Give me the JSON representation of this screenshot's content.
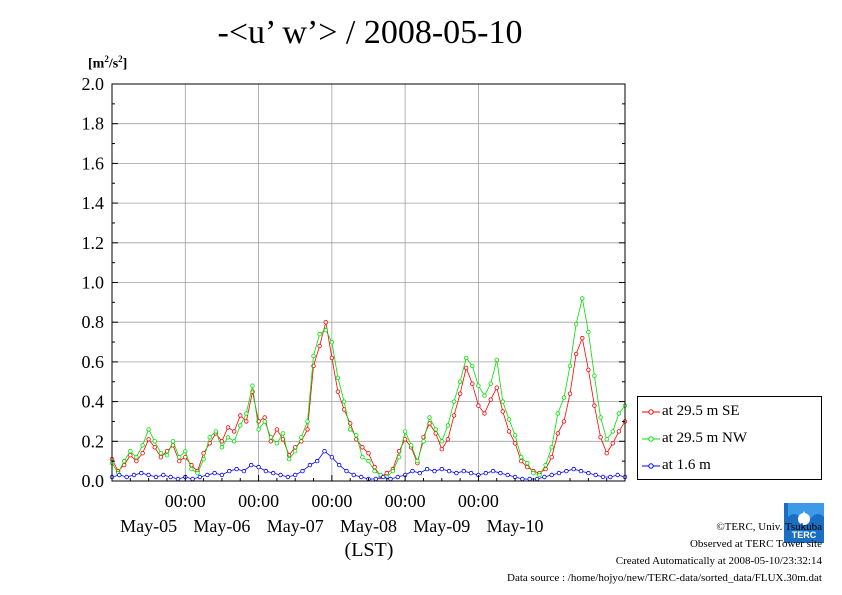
{
  "title": "-<u’ w’> / 2008-05-10",
  "unit_label": {
    "base": "[m",
    "sup": "2",
    "mid": "/s",
    "sup2": "2",
    "end": "]"
  },
  "legend": [
    {
      "label": "at 29.5 m SE",
      "color": "#ff0000"
    },
    {
      "label": "at 29.5 m NW",
      "color": "#00e000"
    },
    {
      "label": "at 1.6 m",
      "color": "#0000ff"
    }
  ],
  "footer": {
    "copyright": "©TERC, Univ. Tsukuba",
    "observed": "Observed at TERC Tower site",
    "created": "Created Automatically at 2008-05-10/23:32:14",
    "source": "Data source : /home/hojyo/new/TERC-data/sorted_data/FLUX.30m.dat"
  },
  "logo_text": "TERC",
  "chart_data": {
    "type": "line",
    "title": "-<u’ w’> / 2008-05-10",
    "xlabel": "(LST)",
    "ylabel": "[m2/s2]",
    "ylim": [
      0,
      2.0
    ],
    "yticks": [
      "0.0",
      "0.2",
      "0.4",
      "0.6",
      "0.8",
      "1.0",
      "1.2",
      "1.4",
      "1.6",
      "1.8",
      "2.0"
    ],
    "xlim": [
      -1,
      6
    ],
    "xticks_time": [
      "00:00",
      "00:00",
      "00:00",
      "00:00",
      "00:00"
    ],
    "xticks_date": [
      "May-05",
      "May-06",
      "May-07",
      "May-08",
      "May-09",
      "May-10"
    ],
    "grid": true,
    "legend_position": "right",
    "series": [
      {
        "name": "at 29.5 m SE",
        "color": "#ff0000",
        "points": [
          [
            -1.0,
            0.11
          ],
          [
            -0.917,
            0.05
          ],
          [
            -0.833,
            0.08
          ],
          [
            -0.75,
            0.13
          ],
          [
            -0.667,
            0.1
          ],
          [
            -0.583,
            0.14
          ],
          [
            -0.5,
            0.21
          ],
          [
            -0.417,
            0.17
          ],
          [
            -0.333,
            0.12
          ],
          [
            -0.25,
            0.15
          ],
          [
            -0.167,
            0.18
          ],
          [
            -0.083,
            0.1
          ],
          [
            0.0,
            0.12
          ],
          [
            0.083,
            0.08
          ],
          [
            0.167,
            0.05
          ],
          [
            0.25,
            0.14
          ],
          [
            0.333,
            0.19
          ],
          [
            0.417,
            0.24
          ],
          [
            0.5,
            0.2
          ],
          [
            0.583,
            0.27
          ],
          [
            0.667,
            0.25
          ],
          [
            0.75,
            0.33
          ],
          [
            0.833,
            0.3
          ],
          [
            0.917,
            0.45
          ],
          [
            1.0,
            0.3
          ],
          [
            1.083,
            0.32
          ],
          [
            1.167,
            0.2
          ],
          [
            1.25,
            0.26
          ],
          [
            1.333,
            0.21
          ],
          [
            1.417,
            0.13
          ],
          [
            1.5,
            0.17
          ],
          [
            1.583,
            0.2
          ],
          [
            1.667,
            0.26
          ],
          [
            1.75,
            0.58
          ],
          [
            1.833,
            0.68
          ],
          [
            1.917,
            0.8
          ],
          [
            2.0,
            0.62
          ],
          [
            2.083,
            0.45
          ],
          [
            2.167,
            0.36
          ],
          [
            2.25,
            0.29
          ],
          [
            2.333,
            0.21
          ],
          [
            2.417,
            0.17
          ],
          [
            2.5,
            0.14
          ],
          [
            2.583,
            0.07
          ],
          [
            2.667,
            0.02
          ],
          [
            2.75,
            0.04
          ],
          [
            2.833,
            0.06
          ],
          [
            2.917,
            0.15
          ],
          [
            3.0,
            0.21
          ],
          [
            3.083,
            0.17
          ],
          [
            3.167,
            0.09
          ],
          [
            3.25,
            0.22
          ],
          [
            3.333,
            0.29
          ],
          [
            3.417,
            0.24
          ],
          [
            3.5,
            0.16
          ],
          [
            3.583,
            0.21
          ],
          [
            3.667,
            0.33
          ],
          [
            3.75,
            0.44
          ],
          [
            3.833,
            0.57
          ],
          [
            3.917,
            0.49
          ],
          [
            4.0,
            0.38
          ],
          [
            4.083,
            0.34
          ],
          [
            4.167,
            0.41
          ],
          [
            4.25,
            0.47
          ],
          [
            4.333,
            0.35
          ],
          [
            4.417,
            0.25
          ],
          [
            4.5,
            0.19
          ],
          [
            4.583,
            0.1
          ],
          [
            4.667,
            0.07
          ],
          [
            4.75,
            0.05
          ],
          [
            4.833,
            0.04
          ],
          [
            4.917,
            0.06
          ],
          [
            5.0,
            0.12
          ],
          [
            5.083,
            0.24
          ],
          [
            5.167,
            0.3
          ],
          [
            5.25,
            0.44
          ],
          [
            5.333,
            0.64
          ],
          [
            5.417,
            0.72
          ],
          [
            5.5,
            0.56
          ],
          [
            5.583,
            0.38
          ],
          [
            5.667,
            0.22
          ],
          [
            5.75,
            0.14
          ],
          [
            5.833,
            0.19
          ],
          [
            5.917,
            0.25
          ],
          [
            6.0,
            0.3
          ]
        ]
      },
      {
        "name": "at 29.5 m NW",
        "color": "#00e000",
        "points": [
          [
            -1.0,
            0.09
          ],
          [
            -0.917,
            0.04
          ],
          [
            -0.833,
            0.1
          ],
          [
            -0.75,
            0.15
          ],
          [
            -0.667,
            0.12
          ],
          [
            -0.583,
            0.18
          ],
          [
            -0.5,
            0.26
          ],
          [
            -0.417,
            0.2
          ],
          [
            -0.333,
            0.14
          ],
          [
            -0.25,
            0.13
          ],
          [
            -0.167,
            0.2
          ],
          [
            -0.083,
            0.12
          ],
          [
            0.0,
            0.15
          ],
          [
            0.083,
            0.06
          ],
          [
            0.167,
            0.04
          ],
          [
            0.25,
            0.11
          ],
          [
            0.333,
            0.22
          ],
          [
            0.417,
            0.25
          ],
          [
            0.5,
            0.17
          ],
          [
            0.583,
            0.22
          ],
          [
            0.667,
            0.2
          ],
          [
            0.75,
            0.28
          ],
          [
            0.833,
            0.34
          ],
          [
            0.917,
            0.48
          ],
          [
            1.0,
            0.26
          ],
          [
            1.083,
            0.3
          ],
          [
            1.167,
            0.22
          ],
          [
            1.25,
            0.19
          ],
          [
            1.333,
            0.24
          ],
          [
            1.417,
            0.11
          ],
          [
            1.5,
            0.15
          ],
          [
            1.583,
            0.22
          ],
          [
            1.667,
            0.3
          ],
          [
            1.75,
            0.63
          ],
          [
            1.833,
            0.74
          ],
          [
            1.917,
            0.76
          ],
          [
            2.0,
            0.7
          ],
          [
            2.083,
            0.52
          ],
          [
            2.167,
            0.4
          ],
          [
            2.25,
            0.26
          ],
          [
            2.333,
            0.23
          ],
          [
            2.417,
            0.12
          ],
          [
            2.5,
            0.1
          ],
          [
            2.583,
            0.05
          ],
          [
            2.667,
            0.03
          ],
          [
            2.75,
            0.02
          ],
          [
            2.833,
            0.05
          ],
          [
            2.917,
            0.12
          ],
          [
            3.0,
            0.25
          ],
          [
            3.083,
            0.18
          ],
          [
            3.167,
            0.1
          ],
          [
            3.25,
            0.2
          ],
          [
            3.333,
            0.32
          ],
          [
            3.417,
            0.26
          ],
          [
            3.5,
            0.2
          ],
          [
            3.583,
            0.28
          ],
          [
            3.667,
            0.4
          ],
          [
            3.75,
            0.5
          ],
          [
            3.833,
            0.62
          ],
          [
            3.917,
            0.58
          ],
          [
            4.0,
            0.48
          ],
          [
            4.083,
            0.43
          ],
          [
            4.167,
            0.49
          ],
          [
            4.25,
            0.61
          ],
          [
            4.333,
            0.4
          ],
          [
            4.417,
            0.31
          ],
          [
            4.5,
            0.23
          ],
          [
            4.583,
            0.12
          ],
          [
            4.667,
            0.09
          ],
          [
            4.75,
            0.04
          ],
          [
            4.833,
            0.03
          ],
          [
            4.917,
            0.08
          ],
          [
            5.0,
            0.17
          ],
          [
            5.083,
            0.34
          ],
          [
            5.167,
            0.42
          ],
          [
            5.25,
            0.58
          ],
          [
            5.333,
            0.79
          ],
          [
            5.417,
            0.92
          ],
          [
            5.5,
            0.75
          ],
          [
            5.583,
            0.53
          ],
          [
            5.667,
            0.32
          ],
          [
            5.75,
            0.21
          ],
          [
            5.833,
            0.25
          ],
          [
            5.917,
            0.34
          ],
          [
            6.0,
            0.38
          ]
        ]
      },
      {
        "name": "at 1.6 m",
        "color": "#0000ff",
        "points": [
          [
            -1.0,
            0.02
          ],
          [
            -0.9,
            0.03
          ],
          [
            -0.8,
            0.02
          ],
          [
            -0.7,
            0.03
          ],
          [
            -0.6,
            0.04
          ],
          [
            -0.5,
            0.03
          ],
          [
            -0.4,
            0.02
          ],
          [
            -0.3,
            0.03
          ],
          [
            -0.2,
            0.02
          ],
          [
            -0.1,
            0.01
          ],
          [
            0.0,
            0.02
          ],
          [
            0.1,
            0.01
          ],
          [
            0.2,
            0.02
          ],
          [
            0.3,
            0.03
          ],
          [
            0.4,
            0.04
          ],
          [
            0.5,
            0.03
          ],
          [
            0.6,
            0.05
          ],
          [
            0.7,
            0.06
          ],
          [
            0.8,
            0.05
          ],
          [
            0.9,
            0.08
          ],
          [
            1.0,
            0.07
          ],
          [
            1.1,
            0.05
          ],
          [
            1.2,
            0.04
          ],
          [
            1.3,
            0.03
          ],
          [
            1.4,
            0.02
          ],
          [
            1.5,
            0.03
          ],
          [
            1.6,
            0.05
          ],
          [
            1.7,
            0.08
          ],
          [
            1.8,
            0.1
          ],
          [
            1.9,
            0.15
          ],
          [
            2.0,
            0.12
          ],
          [
            2.1,
            0.08
          ],
          [
            2.2,
            0.05
          ],
          [
            2.3,
            0.03
          ],
          [
            2.4,
            0.02
          ],
          [
            2.5,
            0.01
          ],
          [
            2.6,
            0.01
          ],
          [
            2.7,
            0.02
          ],
          [
            2.8,
            0.01
          ],
          [
            2.9,
            0.02
          ],
          [
            3.0,
            0.03
          ],
          [
            3.1,
            0.05
          ],
          [
            3.2,
            0.04
          ],
          [
            3.3,
            0.06
          ],
          [
            3.4,
            0.05
          ],
          [
            3.5,
            0.06
          ],
          [
            3.6,
            0.05
          ],
          [
            3.7,
            0.04
          ],
          [
            3.8,
            0.05
          ],
          [
            3.9,
            0.04
          ],
          [
            4.0,
            0.03
          ],
          [
            4.1,
            0.04
          ],
          [
            4.2,
            0.05
          ],
          [
            4.3,
            0.04
          ],
          [
            4.4,
            0.03
          ],
          [
            4.5,
            0.02
          ],
          [
            4.6,
            0.01
          ],
          [
            4.7,
            0.01
          ],
          [
            4.8,
            0.01
          ],
          [
            4.9,
            0.02
          ],
          [
            5.0,
            0.03
          ],
          [
            5.1,
            0.04
          ],
          [
            5.2,
            0.05
          ],
          [
            5.3,
            0.06
          ],
          [
            5.4,
            0.05
          ],
          [
            5.5,
            0.04
          ],
          [
            5.6,
            0.03
          ],
          [
            5.7,
            0.02
          ],
          [
            5.8,
            0.02
          ],
          [
            5.9,
            0.03
          ],
          [
            6.0,
            0.02
          ]
        ]
      }
    ]
  }
}
